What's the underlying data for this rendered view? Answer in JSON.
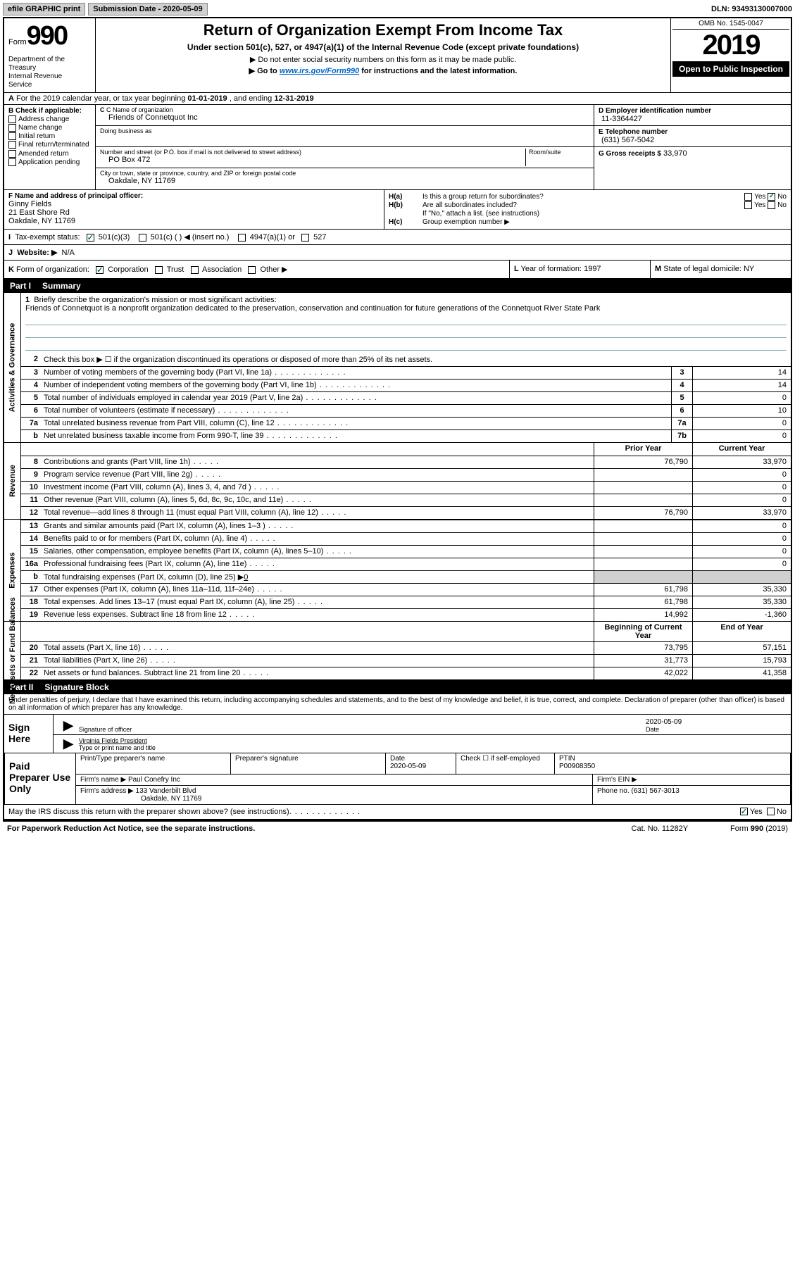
{
  "topbar": {
    "efile": "efile GRAPHIC print",
    "submission_label": "Submission Date",
    "submission_date": "2020-05-09",
    "dln_label": "DLN:",
    "dln": "93493130007000"
  },
  "header": {
    "form_word": "Form",
    "form_num": "990",
    "dept": "Department of the Treasury\nInternal Revenue Service",
    "title": "Return of Organization Exempt From Income Tax",
    "subtitle": "Under section 501(c), 527, or 4947(a)(1) of the Internal Revenue Code (except private foundations)",
    "note1": "▶ Do not enter social security numbers on this form as it may be made public.",
    "note2_pre": "▶ Go to ",
    "note2_link": "www.irs.gov/Form990",
    "note2_post": " for instructions and the latest information.",
    "omb": "OMB No. 1545-0047",
    "year": "2019",
    "open": "Open to Public Inspection"
  },
  "row_a": {
    "prefix": "A",
    "text_pre": "For the 2019 calendar year, or tax year beginning ",
    "begin": "01-01-2019",
    "mid": " , and ending ",
    "end": "12-31-2019"
  },
  "section_b": {
    "label": "B Check if applicable:",
    "items": [
      "Address change",
      "Name change",
      "Initial return",
      "Final return/terminated",
      "Amended return",
      "Application pending"
    ]
  },
  "section_c": {
    "label": "C Name of organization",
    "name": "Friends of Connetquot Inc",
    "dba_label": "Doing business as",
    "dba": "",
    "addr_label": "Number and street (or P.O. box if mail is not delivered to street address)",
    "room_label": "Room/suite",
    "addr": "PO Box 472",
    "city_label": "City or town, state or province, country, and ZIP or foreign postal code",
    "city": "Oakdale, NY  11769"
  },
  "section_d": {
    "label": "D Employer identification number",
    "val": "11-3364427"
  },
  "section_e": {
    "label": "E Telephone number",
    "val": "(631) 567-5042"
  },
  "section_g": {
    "label": "G Gross receipts $",
    "val": "33,970"
  },
  "section_f": {
    "label": "F  Name and address of principal officer:",
    "name": "Ginny Fields",
    "addr1": "21 East Shore Rd",
    "addr2": "Oakdale, NY  11769"
  },
  "section_h": {
    "ha_label": "H(a)",
    "ha_text": "Is this a group return for subordinates?",
    "ha_yes": "Yes",
    "ha_no": "No",
    "hb_label": "H(b)",
    "hb_text": "Are all subordinates included?",
    "hb_yes": "Yes",
    "hb_no": "No",
    "hb_note": "If \"No,\" attach a list. (see instructions)",
    "hc_label": "H(c)",
    "hc_text": "Group exemption number ▶"
  },
  "section_i": {
    "label": "I",
    "text": "Tax-exempt status:",
    "opts": [
      "501(c)(3)",
      "501(c) (  ) ◀ (insert no.)",
      "4947(a)(1) or",
      "527"
    ]
  },
  "section_j": {
    "label": "J",
    "text": "Website: ▶",
    "val": "N/A"
  },
  "section_k": {
    "label": "K",
    "text": "Form of organization:",
    "opts": [
      "Corporation",
      "Trust",
      "Association",
      "Other ▶"
    ]
  },
  "section_l": {
    "label": "L",
    "text": "Year of formation:",
    "val": "1997"
  },
  "section_m": {
    "label": "M",
    "text": "State of legal domicile:",
    "val": "NY"
  },
  "part1": {
    "num": "Part I",
    "title": "Summary"
  },
  "activities": {
    "vert": "Activities & Governance",
    "l1_num": "1",
    "l1_text": "Briefly describe the organization's mission or most significant activities:",
    "l1_val": "Friends of Connetquot is a nonprofit organization dedicated to the preservation, conservation and continuation for future generations of the Connetquot River State Park",
    "l2_num": "2",
    "l2_text": "Check this box ▶ ☐ if the organization discontinued its operations or disposed of more than 25% of its net assets.",
    "rows": [
      {
        "n": "3",
        "t": "Number of voting members of the governing body (Part VI, line 1a)",
        "b": "3",
        "v": "14"
      },
      {
        "n": "4",
        "t": "Number of independent voting members of the governing body (Part VI, line 1b)",
        "b": "4",
        "v": "14"
      },
      {
        "n": "5",
        "t": "Total number of individuals employed in calendar year 2019 (Part V, line 2a)",
        "b": "5",
        "v": "0"
      },
      {
        "n": "6",
        "t": "Total number of volunteers (estimate if necessary)",
        "b": "6",
        "v": "10"
      },
      {
        "n": "7a",
        "t": "Total unrelated business revenue from Part VIII, column (C), line 12",
        "b": "7a",
        "v": "0"
      },
      {
        "n": "b",
        "t": "Net unrelated business taxable income from Form 990-T, line 39",
        "b": "7b",
        "v": "0"
      }
    ]
  },
  "revenue": {
    "vert": "Revenue",
    "header_prior": "Prior Year",
    "header_current": "Current Year",
    "rows": [
      {
        "n": "8",
        "t": "Contributions and grants (Part VIII, line 1h)",
        "p": "76,790",
        "c": "33,970"
      },
      {
        "n": "9",
        "t": "Program service revenue (Part VIII, line 2g)",
        "p": "",
        "c": "0"
      },
      {
        "n": "10",
        "t": "Investment income (Part VIII, column (A), lines 3, 4, and 7d )",
        "p": "",
        "c": "0"
      },
      {
        "n": "11",
        "t": "Other revenue (Part VIII, column (A), lines 5, 6d, 8c, 9c, 10c, and 11e)",
        "p": "",
        "c": "0"
      },
      {
        "n": "12",
        "t": "Total revenue—add lines 8 through 11 (must equal Part VIII, column (A), line 12)",
        "p": "76,790",
        "c": "33,970"
      }
    ]
  },
  "expenses": {
    "vert": "Expenses",
    "rows": [
      {
        "n": "13",
        "t": "Grants and similar amounts paid (Part IX, column (A), lines 1–3 )",
        "p": "",
        "c": "0"
      },
      {
        "n": "14",
        "t": "Benefits paid to or for members (Part IX, column (A), line 4)",
        "p": "",
        "c": "0"
      },
      {
        "n": "15",
        "t": "Salaries, other compensation, employee benefits (Part IX, column (A), lines 5–10)",
        "p": "",
        "c": "0"
      },
      {
        "n": "16a",
        "t": "Professional fundraising fees (Part IX, column (A), line 11e)",
        "p": "",
        "c": "0"
      }
    ],
    "l16b_n": "b",
    "l16b_t": "Total fundraising expenses (Part IX, column (D), line 25) ▶",
    "l16b_v": "0",
    "rows2": [
      {
        "n": "17",
        "t": "Other expenses (Part IX, column (A), lines 11a–11d, 11f–24e)",
        "p": "61,798",
        "c": "35,330"
      },
      {
        "n": "18",
        "t": "Total expenses. Add lines 13–17 (must equal Part IX, column (A), line 25)",
        "p": "61,798",
        "c": "35,330"
      },
      {
        "n": "19",
        "t": "Revenue less expenses. Subtract line 18 from line 12",
        "p": "14,992",
        "c": "-1,360"
      }
    ]
  },
  "netassets": {
    "vert": "Net Assets or Fund Balances",
    "header_begin": "Beginning of Current Year",
    "header_end": "End of Year",
    "rows": [
      {
        "n": "20",
        "t": "Total assets (Part X, line 16)",
        "p": "73,795",
        "c": "57,151"
      },
      {
        "n": "21",
        "t": "Total liabilities (Part X, line 26)",
        "p": "31,773",
        "c": "15,793"
      },
      {
        "n": "22",
        "t": "Net assets or fund balances. Subtract line 21 from line 20",
        "p": "42,022",
        "c": "41,358"
      }
    ]
  },
  "part2": {
    "num": "Part II",
    "title": "Signature Block"
  },
  "sig": {
    "penalties": "Under penalties of perjury, I declare that I have examined this return, including accompanying schedules and statements, and to the best of my knowledge and belief, it is true, correct, and complete. Declaration of preparer (other than officer) is based on all information of which preparer has any knowledge.",
    "sign_here": "Sign Here",
    "sig_officer_label": "Signature of officer",
    "sig_date": "2020-05-09",
    "sig_date_label": "Date",
    "name_title": "Virginia Fields  President",
    "name_title_label": "Type or print name and title"
  },
  "preparer": {
    "left": "Paid Preparer Use Only",
    "col1": "Print/Type preparer's name",
    "col2": "Preparer's signature",
    "col3_label": "Date",
    "col3_val": "2020-05-09",
    "col4_label": "Check ☐ if self-employed",
    "col5_label": "PTIN",
    "col5_val": "P00908350",
    "firm_name_label": "Firm's name    ▶",
    "firm_name": "Paul Conefry Inc",
    "firm_ein_label": "Firm's EIN ▶",
    "firm_addr_label": "Firm's address ▶",
    "firm_addr1": "133 Vanderbilt Blvd",
    "firm_addr2": "Oakdale, NY  11769",
    "phone_label": "Phone no.",
    "phone": "(631) 567-3013"
  },
  "footer": {
    "discuss": "May the IRS discuss this return with the preparer shown above? (see instructions)",
    "yes": "Yes",
    "no": "No",
    "paperwork": "For Paperwork Reduction Act Notice, see the separate instructions.",
    "cat": "Cat. No. 11282Y",
    "form": "Form 990 (2019)"
  }
}
